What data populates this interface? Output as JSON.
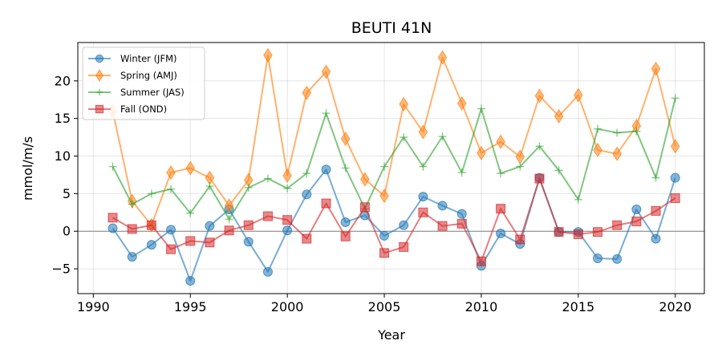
{
  "chart_data": {
    "type": "line",
    "title": "BEUTI 41N",
    "xlabel": "Year",
    "ylabel": "mmol/m/s",
    "xlim": [
      1989.2,
      2021.5
    ],
    "ylim": [
      -8.3,
      25.1
    ],
    "xticks": [
      1990,
      1995,
      2000,
      2005,
      2010,
      2015,
      2020
    ],
    "yticks": [
      -5,
      0,
      5,
      10,
      15,
      20
    ],
    "grid": true,
    "zero_line": true,
    "legend_position": "top-left",
    "x": [
      1991,
      1992,
      1993,
      1994,
      1995,
      1996,
      1997,
      1998,
      1999,
      2000,
      2001,
      2002,
      2003,
      2004,
      2005,
      2006,
      2007,
      2008,
      2009,
      2010,
      2011,
      2012,
      2013,
      2014,
      2015,
      2016,
      2017,
      2018,
      2019,
      2020
    ],
    "series": [
      {
        "name": "Winter (JFM)",
        "color": "#1f77b4",
        "marker": "circle",
        "values": [
          0.4,
          -3.4,
          -1.8,
          0.2,
          -6.6,
          0.7,
          2.9,
          -1.4,
          -5.4,
          0.1,
          4.9,
          8.2,
          1.2,
          2.1,
          -0.6,
          0.8,
          4.6,
          3.4,
          2.3,
          -4.6,
          -0.3,
          -1.7,
          7.1,
          -0.1,
          -0.1,
          -3.6,
          -3.7,
          2.9,
          -1.0,
          7.1
        ]
      },
      {
        "name": "Spring (AMJ)",
        "color": "#ff7f0e",
        "marker": "diamond",
        "values": [
          16.0,
          4.0,
          0.8,
          7.8,
          8.4,
          7.1,
          3.4,
          6.8,
          23.4,
          7.4,
          18.4,
          21.2,
          12.3,
          6.9,
          4.7,
          16.9,
          13.2,
          23.1,
          17.0,
          10.4,
          11.9,
          9.9,
          18.0,
          15.3,
          18.1,
          10.8,
          10.3,
          14.0,
          21.6,
          11.3
        ]
      },
      {
        "name": "Summer (JAS)",
        "color": "#2ca02c",
        "marker": "plus",
        "values": [
          8.6,
          3.6,
          5.0,
          5.6,
          2.4,
          6.0,
          1.6,
          5.8,
          7.0,
          5.7,
          7.7,
          15.7,
          8.4,
          3.0,
          8.6,
          12.5,
          8.6,
          12.6,
          7.8,
          16.3,
          7.7,
          8.6,
          11.3,
          8.1,
          4.2,
          13.6,
          13.1,
          13.3,
          7.1,
          17.7
        ]
      },
      {
        "name": "Fall (OND)",
        "color": "#d62728",
        "marker": "square",
        "values": [
          1.8,
          0.3,
          0.8,
          -2.4,
          -1.3,
          -1.5,
          0.1,
          0.8,
          2.0,
          1.5,
          -1.0,
          3.7,
          -0.7,
          3.2,
          -2.9,
          -2.1,
          2.5,
          0.7,
          1.0,
          -4.0,
          3.0,
          -1.1,
          7.0,
          -0.1,
          -0.4,
          -0.1,
          0.8,
          1.3,
          2.7,
          4.4
        ]
      }
    ]
  }
}
